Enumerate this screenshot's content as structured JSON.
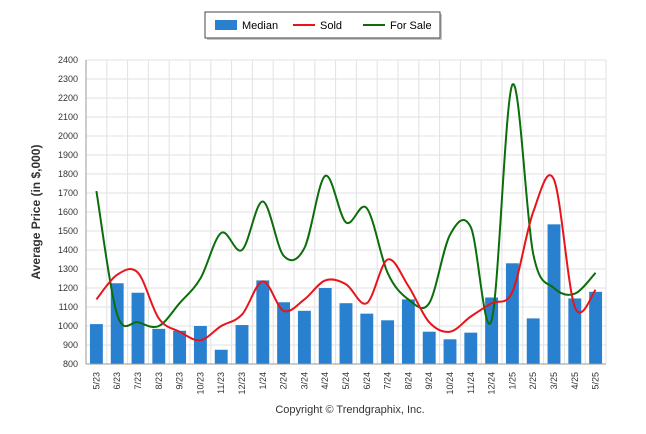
{
  "chart_data": {
    "type": "bar",
    "ylabel": "Average Price (in $,000)",
    "ylim": [
      800,
      2400
    ],
    "yticks": [
      800,
      900,
      1000,
      1100,
      1200,
      1300,
      1400,
      1500,
      1600,
      1700,
      1800,
      1900,
      2000,
      2100,
      2200,
      2300,
      2400
    ],
    "categories": [
      "5/23",
      "6/23",
      "7/23",
      "8/23",
      "9/23",
      "10/23",
      "11/23",
      "12/23",
      "1/24",
      "2/24",
      "3/24",
      "4/24",
      "5/24",
      "6/24",
      "7/24",
      "8/24",
      "9/24",
      "10/24",
      "11/24",
      "12/24",
      "1/25",
      "2/25",
      "3/25",
      "4/25",
      "5/25"
    ],
    "grid": true,
    "legend_position": "top-center",
    "series": [
      {
        "name": "Median",
        "kind": "bar",
        "color": "#2980cf",
        "values": [
          1010,
          1225,
          1175,
          985,
          975,
          1000,
          875,
          1005,
          1240,
          1125,
          1080,
          1200,
          1120,
          1065,
          1030,
          1140,
          970,
          930,
          965,
          1150,
          1330,
          1040,
          1535,
          1145,
          1180
        ]
      },
      {
        "name": "Sold",
        "kind": "line",
        "color": "#e8141b",
        "values": [
          1140,
          1270,
          1280,
          1040,
          970,
          925,
          1000,
          1060,
          1235,
          1080,
          1140,
          1240,
          1220,
          1120,
          1350,
          1210,
          1020,
          970,
          1050,
          1120,
          1180,
          1600,
          1770,
          1100,
          1190
        ]
      },
      {
        "name": "For Sale",
        "kind": "line",
        "color": "#0b6e0b",
        "values": [
          1710,
          1060,
          1020,
          1000,
          1120,
          1250,
          1490,
          1400,
          1655,
          1370,
          1410,
          1790,
          1545,
          1620,
          1280,
          1140,
          1120,
          1480,
          1520,
          1030,
          2270,
          1380,
          1200,
          1170,
          1280
        ]
      }
    ],
    "annotation": "Copyright © Trendgraphix, Inc."
  }
}
